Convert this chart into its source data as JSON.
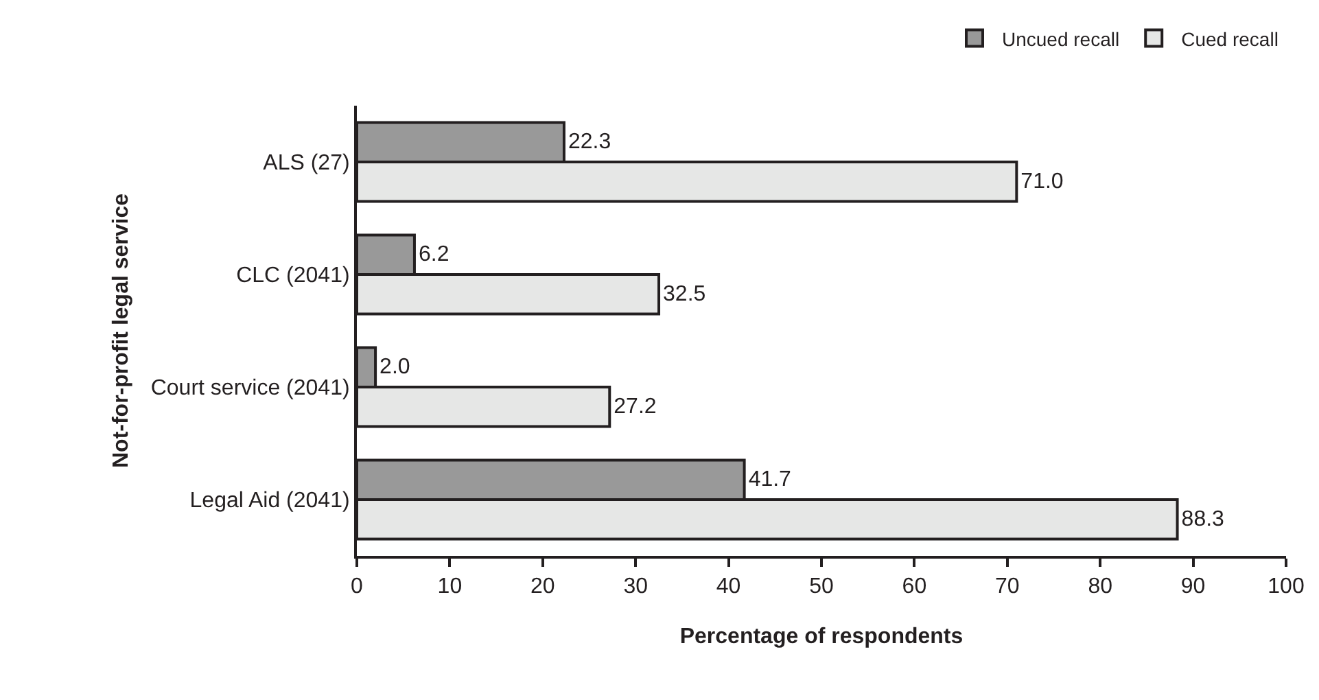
{
  "chart_data": {
    "type": "bar",
    "orientation": "horizontal",
    "xlabel": "Percentage of respondents",
    "ylabel": "Not-for-profit legal service",
    "categories": [
      "ALS (27)",
      "CLC (2041)",
      "Court service (2041)",
      "Legal Aid (2041)"
    ],
    "series": [
      {
        "name": "Uncued recall",
        "color": "#999999",
        "values": [
          22.3,
          6.2,
          2.0,
          41.7
        ]
      },
      {
        "name": "Cued recall",
        "color": "#e6e7e6",
        "values": [
          71.0,
          32.5,
          27.2,
          88.3
        ]
      }
    ],
    "xlim": [
      0,
      100
    ],
    "xticks": [
      0,
      10,
      20,
      30,
      40,
      50,
      60,
      70,
      80,
      90,
      100
    ],
    "legend": "top right",
    "value_labels": [
      [
        "22.3",
        "6.2",
        "2.0",
        "41.7"
      ],
      [
        "71.0",
        "32.5",
        "27.2",
        "88.3"
      ]
    ]
  }
}
